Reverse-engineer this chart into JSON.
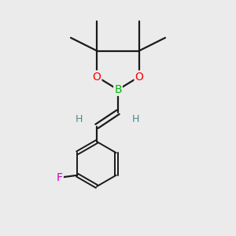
{
  "background_color": "#ebebeb",
  "bond_color": "#1a1a1a",
  "atom_colors": {
    "B": "#00bb00",
    "O": "#ff0000",
    "F": "#cc00cc",
    "H": "#4a8a8a",
    "C": "#1a1a1a"
  },
  "figsize": [
    3.0,
    3.0
  ],
  "dpi": 100
}
